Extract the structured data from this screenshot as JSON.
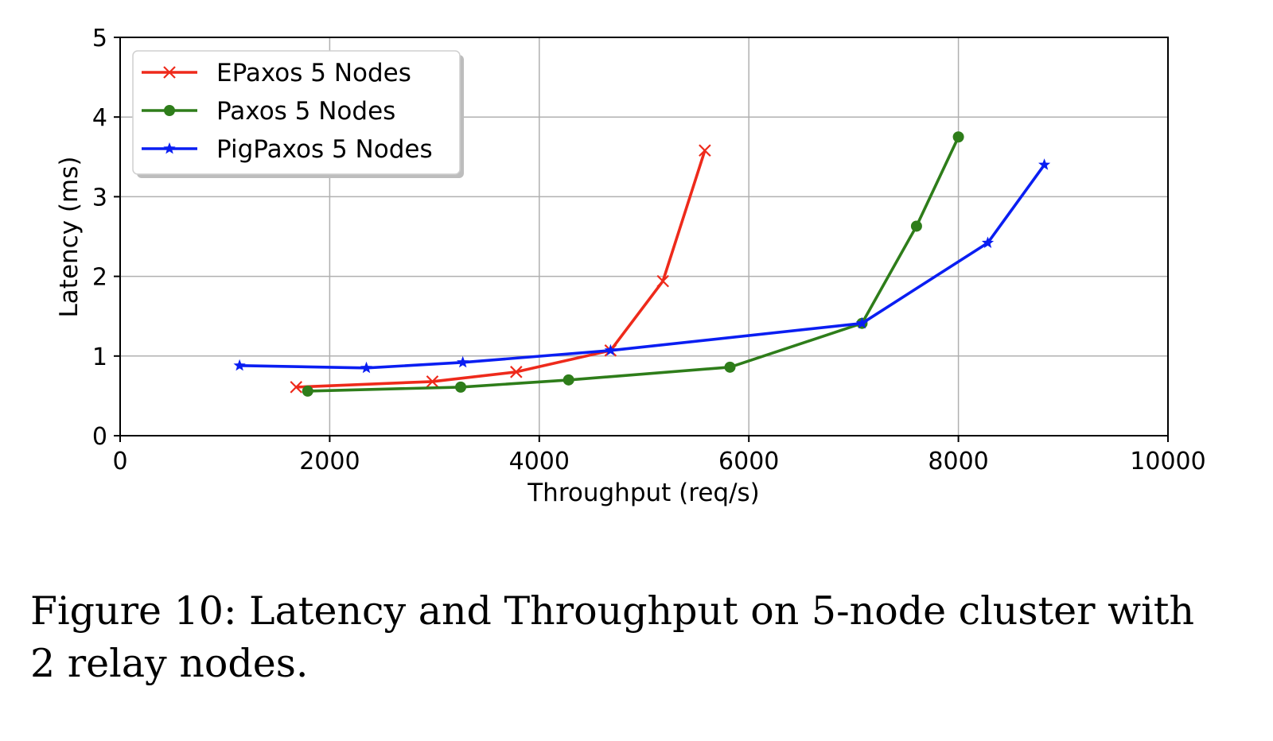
{
  "chart_data": {
    "type": "line",
    "xlabel": "Throughput (req/s)",
    "ylabel": "Latency (ms)",
    "xlim": [
      0,
      10000
    ],
    "ylim": [
      0,
      5
    ],
    "xticks": [
      0,
      2000,
      4000,
      6000,
      8000,
      10000
    ],
    "yticks": [
      0,
      1,
      2,
      3,
      4,
      5
    ],
    "grid": true,
    "legend_position": "top-left",
    "series": [
      {
        "name": "EPaxos 5 Nodes",
        "color": "#ee2a1b",
        "marker": "x",
        "points": [
          [
            1680,
            0.61
          ],
          [
            2980,
            0.68
          ],
          [
            3780,
            0.8
          ],
          [
            4680,
            1.07
          ],
          [
            5180,
            1.94
          ],
          [
            5580,
            3.58
          ]
        ]
      },
      {
        "name": "Paxos 5 Nodes",
        "color": "#2e7d1a",
        "marker": "circle",
        "points": [
          [
            1790,
            0.56
          ],
          [
            3250,
            0.61
          ],
          [
            4280,
            0.7
          ],
          [
            5820,
            0.86
          ],
          [
            7080,
            1.41
          ],
          [
            7600,
            2.63
          ],
          [
            8000,
            3.75
          ]
        ]
      },
      {
        "name": "PigPaxos 5 Nodes",
        "color": "#0a1ef2",
        "marker": "star",
        "points": [
          [
            1140,
            0.88
          ],
          [
            2350,
            0.85
          ],
          [
            3270,
            0.92
          ],
          [
            4680,
            1.07
          ],
          [
            7080,
            1.41
          ],
          [
            8280,
            2.42
          ],
          [
            8820,
            3.4
          ]
        ]
      }
    ]
  },
  "caption": {
    "line1": "Figure 10: Latency and Throughput on 5-node cluster with",
    "line2": "2 relay nodes."
  }
}
